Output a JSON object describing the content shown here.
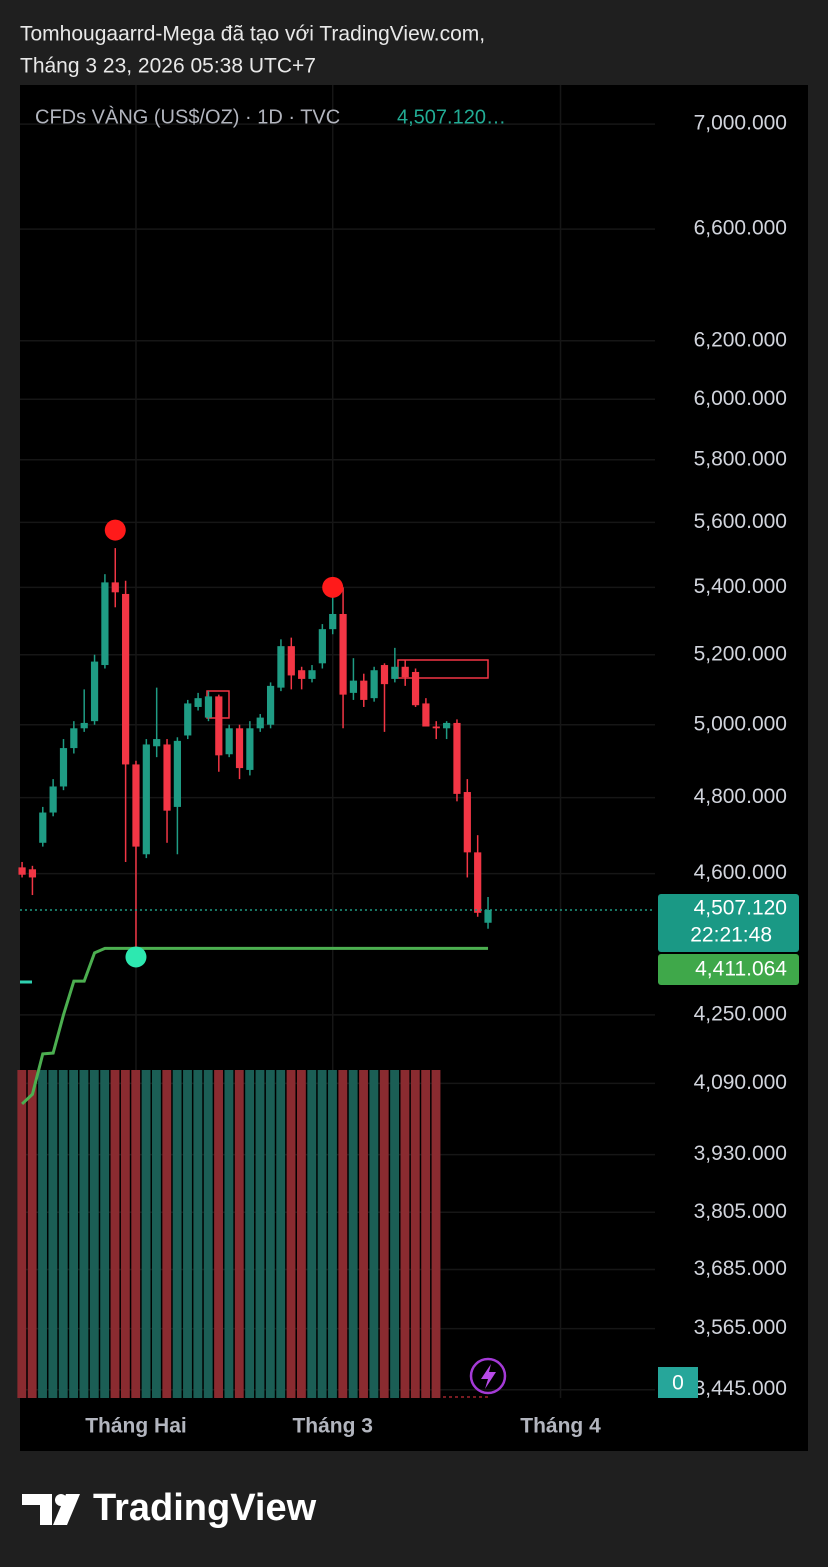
{
  "header": {
    "line1": "Tomhougaarrd-Mega đã tạo với TradingView.com,",
    "line2": "Tháng 3 23, 2026 05:38 UTC+7"
  },
  "chart_data": {
    "type": "candlestick",
    "symbol": "CFDs VÀNG (US$/OZ) · 1D · TVC",
    "legend_price": "4,507.120…",
    "log_scale": true,
    "ylim": [
      3429,
      7155
    ],
    "yticks": [
      {
        "value": 7000,
        "label": "7,000.000"
      },
      {
        "value": 6600,
        "label": "6,600.000"
      },
      {
        "value": 6200,
        "label": "6,200.000"
      },
      {
        "value": 6000,
        "label": "6,000.000"
      },
      {
        "value": 5800,
        "label": "5,800.000"
      },
      {
        "value": 5600,
        "label": "5,600.000"
      },
      {
        "value": 5400,
        "label": "5,400.000"
      },
      {
        "value": 5200,
        "label": "5,200.000"
      },
      {
        "value": 5000,
        "label": "5,000.000"
      },
      {
        "value": 4800,
        "label": "4,800.000"
      },
      {
        "value": 4600,
        "label": "4,600.000"
      },
      {
        "value": 4250,
        "label": "4,250.000"
      },
      {
        "value": 4090,
        "label": "4,090.000"
      },
      {
        "value": 3930,
        "label": "3,930.000"
      },
      {
        "value": 3805,
        "label": "3,805.000"
      },
      {
        "value": 3685,
        "label": "3,685.000"
      },
      {
        "value": 3565,
        "label": "3,565.000"
      },
      {
        "value": 3445,
        "label": "3,445.000"
      }
    ],
    "xlim": [
      -0.2,
      75.9
    ],
    "xticks": [
      {
        "value": 11,
        "label": "Tháng Hai"
      },
      {
        "value": 30,
        "label": "Tháng 3"
      },
      {
        "value": 52,
        "label": "Tháng 4"
      }
    ],
    "grid": true,
    "up_color": "#1f9c84",
    "down_color": "#f23645",
    "x": [
      0,
      1,
      2,
      3,
      4,
      5,
      6,
      7,
      8,
      9,
      10,
      11,
      12,
      13,
      14,
      15,
      16,
      17,
      18,
      19,
      20,
      21,
      22,
      23,
      24,
      25,
      26,
      27,
      28,
      29,
      30,
      31,
      32,
      33,
      34,
      35,
      36,
      37,
      38,
      39,
      40,
      41,
      42,
      43,
      44,
      45
    ],
    "open": [
      4616,
      4611,
      4680,
      4760,
      4830,
      4935,
      4990,
      5010,
      5170,
      5415,
      5380,
      4890,
      4650,
      4940,
      4945,
      4775,
      4970,
      5050,
      5020,
      5080,
      4918,
      4990,
      4875,
      4990,
      5000,
      5105,
      5225,
      5155,
      5130,
      5175,
      5275,
      5320,
      5090,
      5125,
      5075,
      5170,
      5130,
      5165,
      5150,
      5060,
      4995,
      4990,
      5005,
      4815,
      4655,
      4475
    ],
    "high": [
      4630,
      4620,
      4775,
      4850,
      4960,
      5010,
      5100,
      5200,
      5440,
      5520,
      5420,
      4900,
      4960,
      5105,
      4960,
      4965,
      5070,
      5090,
      5095,
      5085,
      5000,
      5000,
      5010,
      5030,
      5120,
      5245,
      5250,
      5165,
      5170,
      5290,
      5370,
      5400,
      5190,
      5145,
      5165,
      5175,
      5220,
      5185,
      5160,
      5075,
      5010,
      5010,
      5015,
      4850,
      4700,
      4540
    ],
    "low": [
      4590,
      4545,
      4670,
      4750,
      4820,
      4920,
      4980,
      5000,
      5160,
      5340,
      4630,
      4390,
      4640,
      4910,
      4680,
      4650,
      4960,
      5040,
      5010,
      4870,
      4910,
      4850,
      4860,
      4980,
      4990,
      5095,
      5100,
      5100,
      5120,
      5160,
      5260,
      4990,
      5070,
      5050,
      5065,
      4980,
      5120,
      5110,
      5050,
      4995,
      4960,
      4960,
      4790,
      4590,
      4490,
      4460
    ],
    "close": [
      4597,
      4590,
      4760,
      4830,
      4935,
      4990,
      5005,
      5180,
      5415,
      5385,
      4890,
      4670,
      4945,
      4960,
      4765,
      4955,
      5060,
      5075,
      5080,
      4915,
      4990,
      4880,
      4990,
      5020,
      5110,
      5225,
      5140,
      5130,
      5155,
      5275,
      5320,
      5085,
      5125,
      5070,
      5155,
      5115,
      5165,
      5135,
      5055,
      4995,
      4990,
      5005,
      4810,
      4655,
      4500,
      4507.12
    ],
    "trail": {
      "color": "#4caf50",
      "values": [
        4043,
        4065,
        4158,
        4160,
        4250,
        4331,
        4331,
        4400,
        4411.064,
        4411.064,
        4411.064,
        4411.064,
        4411.064,
        4411.064,
        4411.064,
        4411.064,
        4411.064,
        4411.064,
        4411.064,
        4411.064,
        4411.064,
        4411.064,
        4411.064,
        4411.064,
        4411.064,
        4411.064,
        4411.064,
        4411.064,
        4411.064,
        4411.064,
        4411.064,
        4411.064,
        4411.064,
        4411.064,
        4411.064,
        4411.064,
        4411.064,
        4411.064,
        4411.064,
        4411.064,
        4411.064,
        4411.064,
        4411.064,
        4411.064,
        4411.064,
        4411.064
      ]
    },
    "markers": [
      {
        "x": 9,
        "value": 5576,
        "color": "#ff1a1a"
      },
      {
        "x": 30,
        "value": 5400,
        "color": "#ff1a1a"
      },
      {
        "x": 11,
        "value": 4390,
        "color": "#2de8b0"
      }
    ],
    "last_price": {
      "value": 4507.12,
      "label": "4,507.120"
    },
    "countdown": "22:21:48",
    "trail_label": {
      "value": 4411.064,
      "label": "4,411.064"
    },
    "badge": "0"
  },
  "footer": {
    "brand": "TradingView"
  }
}
